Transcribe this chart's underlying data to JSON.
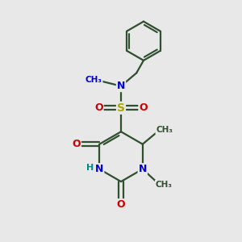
{
  "bg_color": "#e8e8e8",
  "atom_colors": {
    "C": "#2f4f2f",
    "N": "#0000cc",
    "O": "#cc0000",
    "S": "#aaaa00",
    "H": "#008888"
  },
  "bond_color": "#2f4f2f",
  "bond_lw": 1.6,
  "figsize": [
    3.0,
    3.0
  ],
  "dpi": 100,
  "xlim": [
    0,
    10
  ],
  "ylim": [
    0,
    10
  ]
}
